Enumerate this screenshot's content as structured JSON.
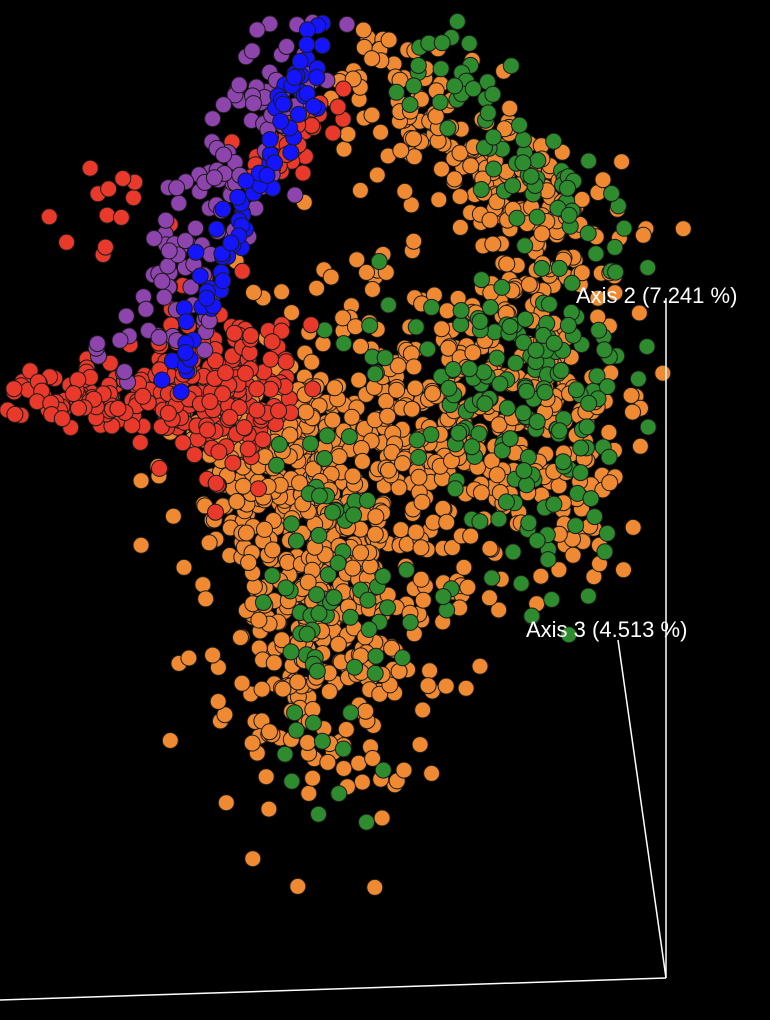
{
  "chart_data": {
    "type": "scatter",
    "projection": "3d",
    "background": "#000000",
    "axes": [
      {
        "name": "Axis 2",
        "label": "Axis 2 (7.241 %)"
      },
      {
        "name": "Axis 3",
        "label": "Axis 3 (4.513 %)"
      }
    ],
    "colors": {
      "orange": "#f08a32",
      "green": "#2e8b2e",
      "red": "#e8392a",
      "purple": "#8e44ad",
      "blue": "#1414ff"
    }
  }
}
